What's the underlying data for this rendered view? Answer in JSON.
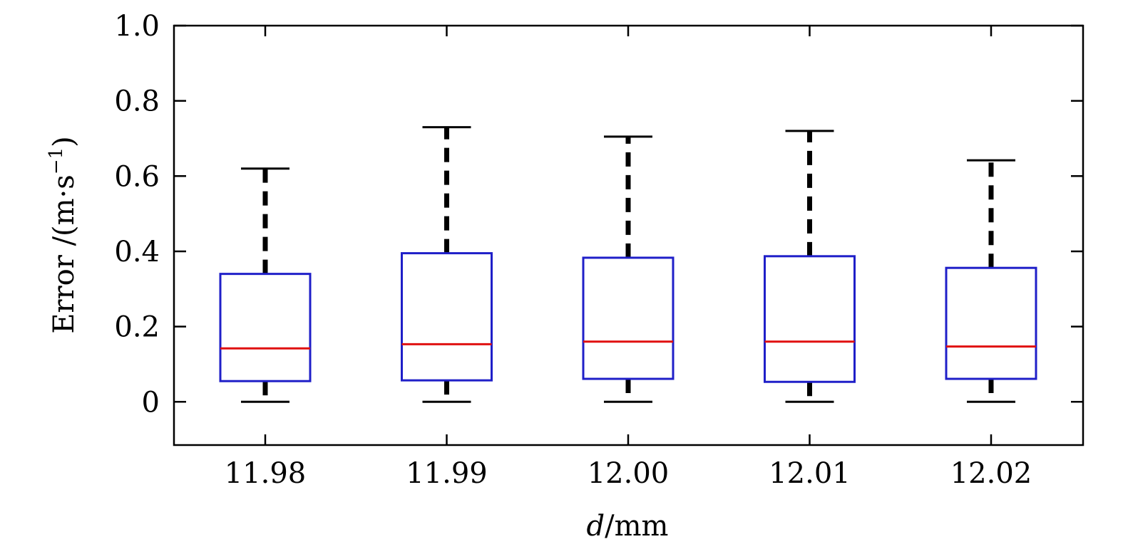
{
  "chart_data": {
    "type": "box",
    "categories": [
      "11.98",
      "11.99",
      "12.00",
      "12.01",
      "12.02"
    ],
    "boxes": [
      {
        "whisker_low": 0.0,
        "q1": 0.055,
        "median": 0.142,
        "q3": 0.34,
        "whisker_high": 0.62
      },
      {
        "whisker_low": 0.0,
        "q1": 0.057,
        "median": 0.153,
        "q3": 0.395,
        "whisker_high": 0.73
      },
      {
        "whisker_low": 0.0,
        "q1": 0.061,
        "median": 0.16,
        "q3": 0.383,
        "whisker_high": 0.705
      },
      {
        "whisker_low": 0.0,
        "q1": 0.053,
        "median": 0.16,
        "q3": 0.387,
        "whisker_high": 0.72
      },
      {
        "whisker_low": 0.0,
        "q1": 0.061,
        "median": 0.147,
        "q3": 0.356,
        "whisker_high": 0.642
      }
    ],
    "yticks": [
      "0",
      "0.2",
      "0.4",
      "0.6",
      "0.8",
      "1.0"
    ],
    "ylim": [
      -0.115,
      1.0
    ],
    "xlabel_var": "d",
    "xlabel_unit": "/mm",
    "ylabel_prefix": "Error /(m·s",
    "ylabel_exp": "−1",
    "ylabel_suffix": ")",
    "grid": false,
    "colors": {
      "box": "#1f1fc8",
      "median": "#e01010",
      "whisker": "#000000"
    }
  }
}
